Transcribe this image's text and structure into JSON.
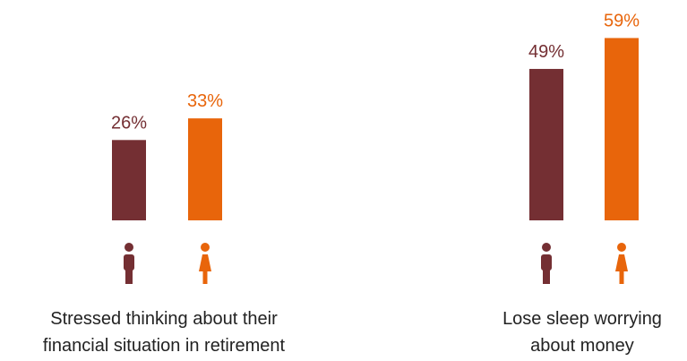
{
  "colors": {
    "men": "#742f33",
    "women": "#e8650b"
  },
  "chart_data": [
    {
      "type": "bar",
      "categories": [
        "men",
        "women"
      ],
      "values": [
        26,
        33
      ],
      "value_labels": [
        "26%",
        "33%"
      ],
      "caption_lines": [
        "Stressed thinking about their",
        "financial situation in retirement"
      ],
      "icons": [
        "man-icon",
        "woman-icon"
      ],
      "ylim": [
        0,
        60
      ]
    },
    {
      "type": "bar",
      "categories": [
        "men",
        "women"
      ],
      "values": [
        49,
        59
      ],
      "value_labels": [
        "49%",
        "59%"
      ],
      "caption_lines": [
        "Lose sleep worrying",
        "about money"
      ],
      "icons": [
        "man-icon",
        "woman-icon"
      ],
      "ylim": [
        0,
        60
      ]
    }
  ]
}
